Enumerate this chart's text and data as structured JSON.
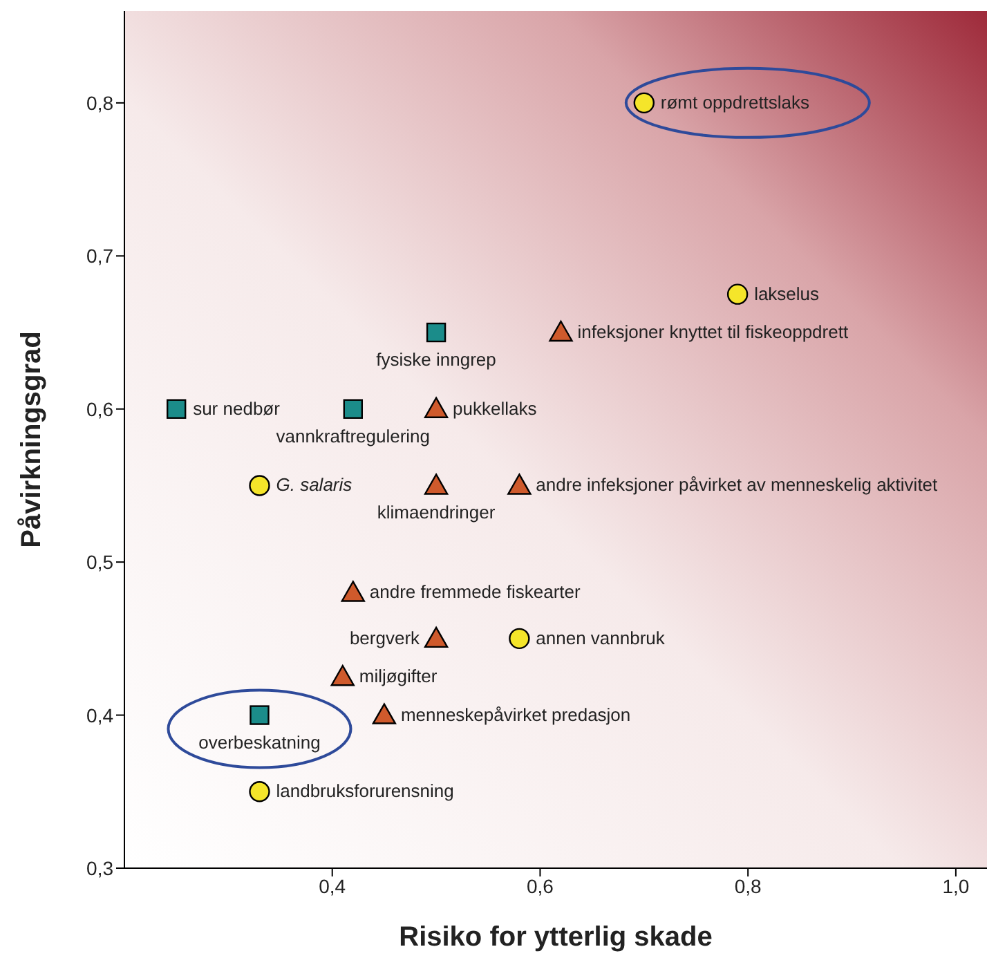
{
  "chart_data": {
    "type": "scatter",
    "xlabel": "Risiko for ytterlig skade",
    "ylabel": "Påvirkningsgrad",
    "xlim": [
      0.2,
      1.03
    ],
    "ylim": [
      0.3,
      0.86
    ],
    "xticks": [
      {
        "value": 0.4,
        "label": "0,4"
      },
      {
        "value": 0.6,
        "label": "0,6"
      },
      {
        "value": 0.8,
        "label": "0,8"
      },
      {
        "value": 1.0,
        "label": "1,0"
      }
    ],
    "yticks": [
      {
        "value": 0.3,
        "label": "0,3"
      },
      {
        "value": 0.4,
        "label": "0,4"
      },
      {
        "value": 0.5,
        "label": "0,5"
      },
      {
        "value": 0.6,
        "label": "0,6"
      },
      {
        "value": 0.7,
        "label": "0,7"
      },
      {
        "value": 0.8,
        "label": "0,8"
      }
    ],
    "series": [
      {
        "marker": "circle",
        "color": "#f5e52a",
        "x": [
          0.7,
          0.79,
          0.33,
          0.58,
          0.33
        ],
        "values": [
          0.8,
          0.675,
          0.55,
          0.45,
          0.35
        ]
      },
      {
        "marker": "triangle",
        "color": "#cf5a2c",
        "x": [
          0.62,
          0.5,
          0.5,
          0.58,
          0.42,
          0.5,
          0.41,
          0.45
        ],
        "values": [
          0.65,
          0.6,
          0.55,
          0.55,
          0.48,
          0.45,
          0.425,
          0.4
        ]
      },
      {
        "marker": "square",
        "color": "#1b8c8a",
        "x": [
          0.5,
          0.25,
          0.42,
          0.33
        ],
        "values": [
          0.65,
          0.6,
          0.6,
          0.4
        ]
      }
    ],
    "annotations": [
      {
        "text": "rømt oppdrettslaks",
        "x": 0.7,
        "y": 0.8
      },
      {
        "text": "lakselus",
        "x": 0.79,
        "y": 0.675
      },
      {
        "text": "infeksjoner knyttet til fiskeoppdrett",
        "x": 0.62,
        "y": 0.65
      },
      {
        "text": "fysiske inngrep",
        "x": 0.5,
        "y": 0.65
      },
      {
        "text": "sur nedbør",
        "x": 0.25,
        "y": 0.6
      },
      {
        "text": "vannkraftregulering",
        "x": 0.42,
        "y": 0.6
      },
      {
        "text": "pukkellaks",
        "x": 0.5,
        "y": 0.6
      },
      {
        "text": "G. salaris",
        "x": 0.33,
        "y": 0.55
      },
      {
        "text": "klimaendringer",
        "x": 0.5,
        "y": 0.55
      },
      {
        "text": "andre infeksjoner påvirket av menneskelig aktivitet",
        "x": 0.58,
        "y": 0.55
      },
      {
        "text": "andre fremmede fiskearter",
        "x": 0.42,
        "y": 0.48
      },
      {
        "text": "bergverk",
        "x": 0.5,
        "y": 0.45
      },
      {
        "text": "annen vannbruk",
        "x": 0.58,
        "y": 0.45
      },
      {
        "text": "miljøgifter",
        "x": 0.41,
        "y": 0.425
      },
      {
        "text": "menneskepåvirket predasjon",
        "x": 0.45,
        "y": 0.4
      },
      {
        "text": "overbeskatning",
        "x": 0.33,
        "y": 0.4
      },
      {
        "text": "landbruksforurensning",
        "x": 0.33,
        "y": 0.35
      }
    ]
  }
}
